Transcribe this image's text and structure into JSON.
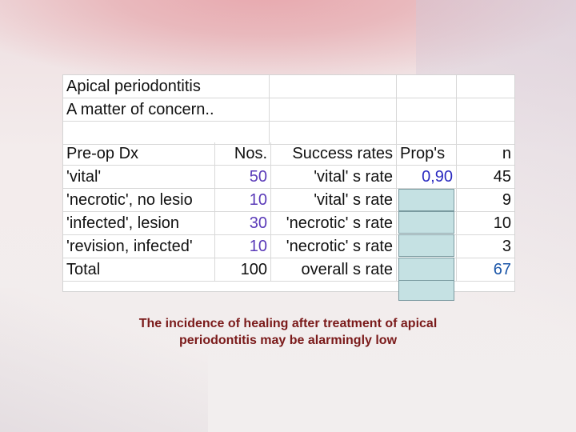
{
  "sheet": {
    "title_line1": "Apical periodontitis",
    "title_line2": "A matter of concern..",
    "headers": [
      "Pre-op Dx",
      "Nos.",
      "Success rates",
      "Prop's",
      "n"
    ],
    "rows": [
      {
        "dx": "'vital'",
        "nos": "50",
        "label": "'vital' s rate",
        "prop": "0,90",
        "n": "45"
      },
      {
        "dx": "'necrotic', no lesio",
        "nos": "10",
        "label": "'vital' s rate",
        "prop": "",
        "n": "9"
      },
      {
        "dx": "'infected', lesion",
        "nos": "30",
        "label": "'necrotic' s rate",
        "prop": "",
        "n": "10"
      },
      {
        "dx": "'revision, infected'",
        "nos": "10",
        "label": "'necrotic' s rate",
        "prop": "",
        "n": "3"
      },
      {
        "dx": "Total",
        "nos": "100",
        "label": "overall s rate",
        "prop": "",
        "n": "67"
      }
    ]
  },
  "caption": {
    "line1": "The incidence of healing after treatment of apical",
    "line2": "periodontitis may be alarmingly low"
  }
}
